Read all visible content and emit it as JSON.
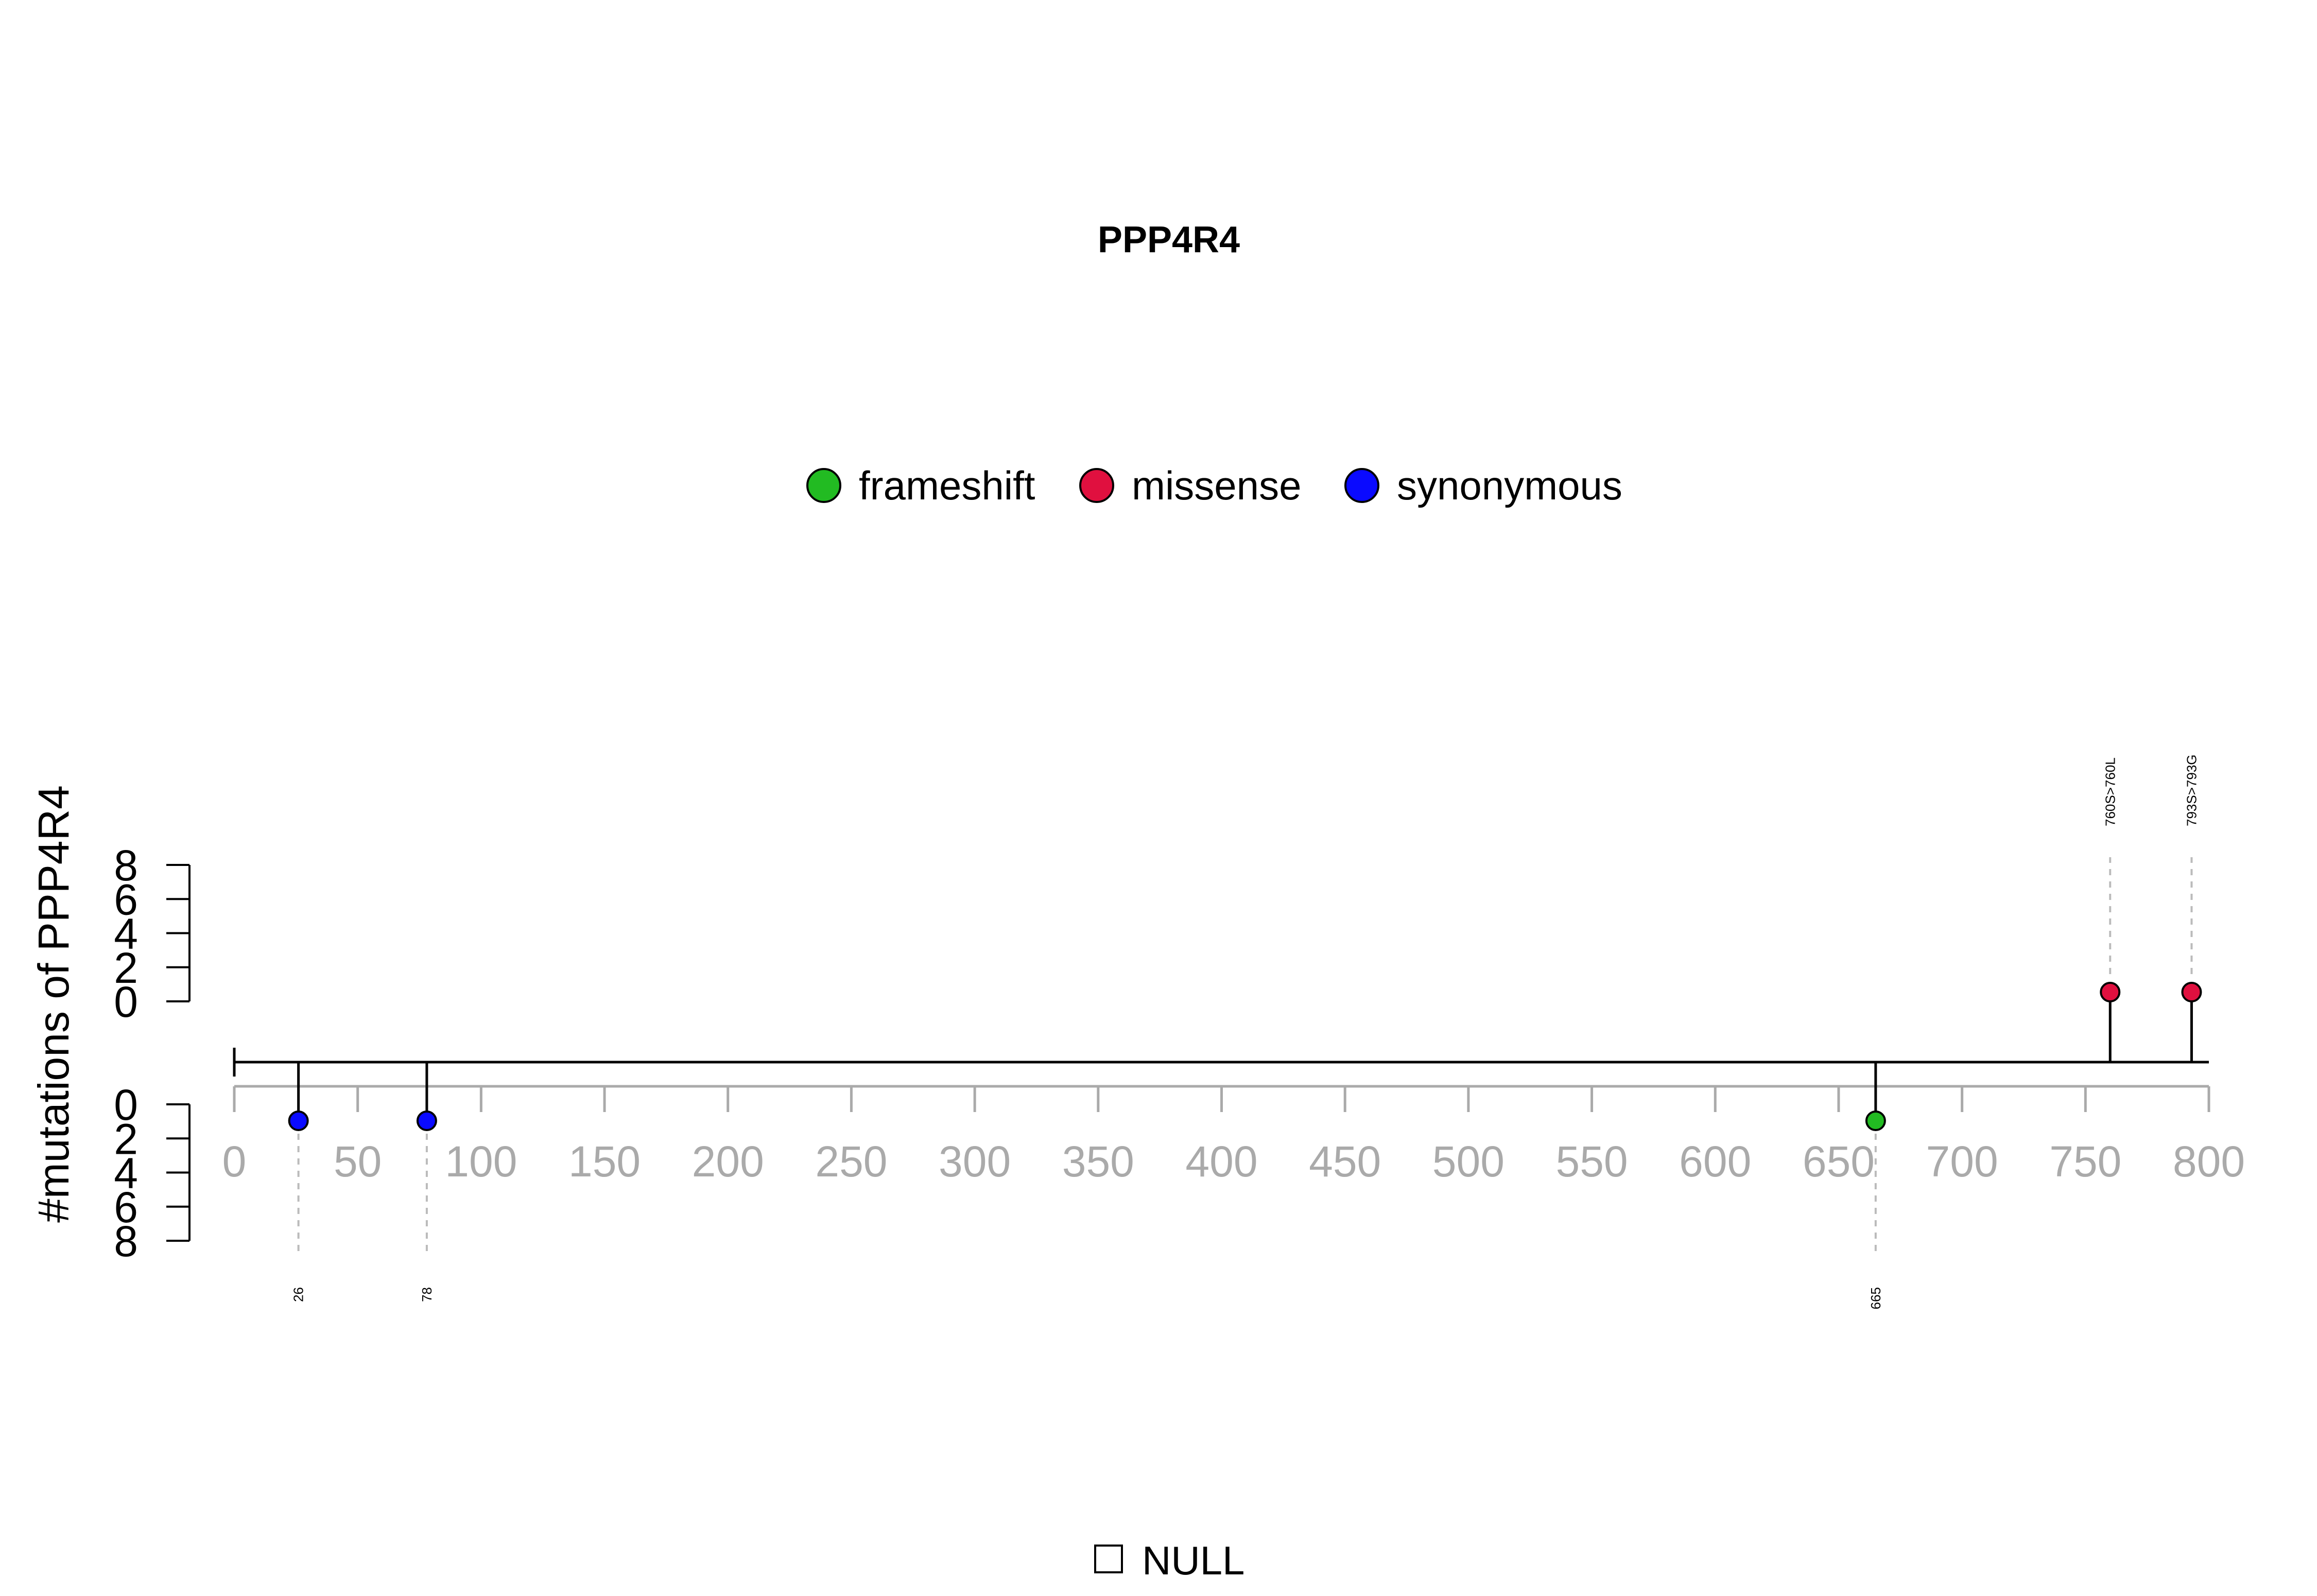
{
  "chart_data": {
    "type": "lollipop",
    "title": "PPP4R4",
    "ylabel": "#mutations of PPP4R4",
    "xlim": [
      0,
      800
    ],
    "x_ticks": [
      0,
      50,
      100,
      150,
      200,
      250,
      300,
      350,
      400,
      450,
      500,
      550,
      600,
      650,
      700,
      750,
      800
    ],
    "y_ticks_upper": [
      8,
      6,
      4,
      2,
      0
    ],
    "y_ticks_lower": [
      0,
      2,
      4,
      6,
      8
    ],
    "legend": [
      {
        "label": "frameshift",
        "color": "#22bb22"
      },
      {
        "label": "missense",
        "color": "#e0103f"
      },
      {
        "label": "synonymous",
        "color": "#0a0aff"
      }
    ],
    "mutations": [
      {
        "position": 26,
        "count": 1,
        "type": "synonymous",
        "side": "lower",
        "label": "26",
        "color": "#0a0aff"
      },
      {
        "position": 78,
        "count": 1,
        "type": "synonymous",
        "side": "lower",
        "label": "78",
        "color": "#0a0aff"
      },
      {
        "position": 665,
        "count": 1,
        "type": "frameshift",
        "side": "lower",
        "label": "665",
        "color": "#22bb22"
      },
      {
        "position": 760,
        "count": 1,
        "type": "missense",
        "side": "upper",
        "label": "760S>760L",
        "color": "#e0103f"
      },
      {
        "position": 793,
        "count": 1,
        "type": "missense",
        "side": "upper",
        "label": "793S>793G",
        "color": "#e0103f"
      }
    ],
    "domain_legend": {
      "label": "NULL"
    }
  }
}
